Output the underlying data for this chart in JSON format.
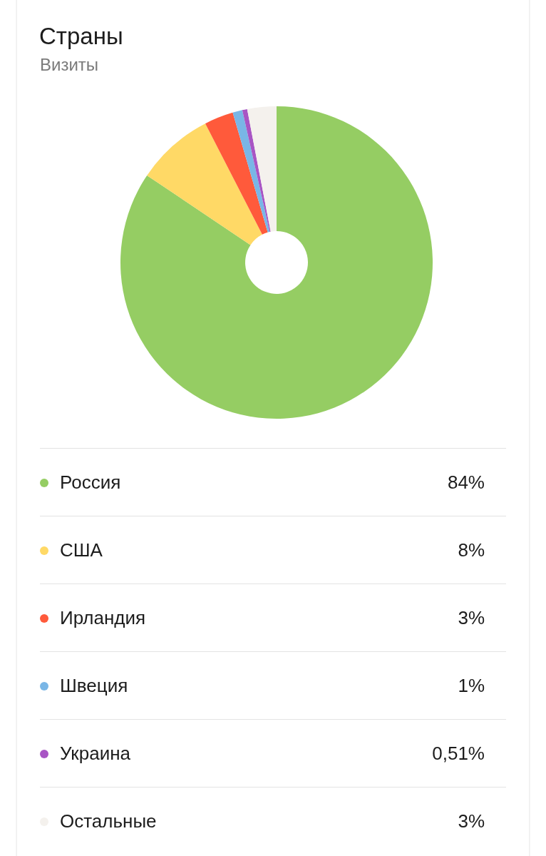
{
  "chart_data": {
    "type": "donut",
    "title": "Страны",
    "subtitle": "Визиты",
    "categories": [
      "Россия",
      "США",
      "Ирландия",
      "Швеция",
      "Украина",
      "Остальные"
    ],
    "values": [
      84,
      8,
      3,
      1,
      0.51,
      3
    ],
    "colors": [
      "#95cd63",
      "#ffd966",
      "#ff5a3b",
      "#79b6e6",
      "#a855c4",
      "#f4f1ed"
    ],
    "value_labels": [
      "84%",
      "8%",
      "3%",
      "1%",
      "0,51%",
      "3%"
    ],
    "legend": "bottom"
  }
}
